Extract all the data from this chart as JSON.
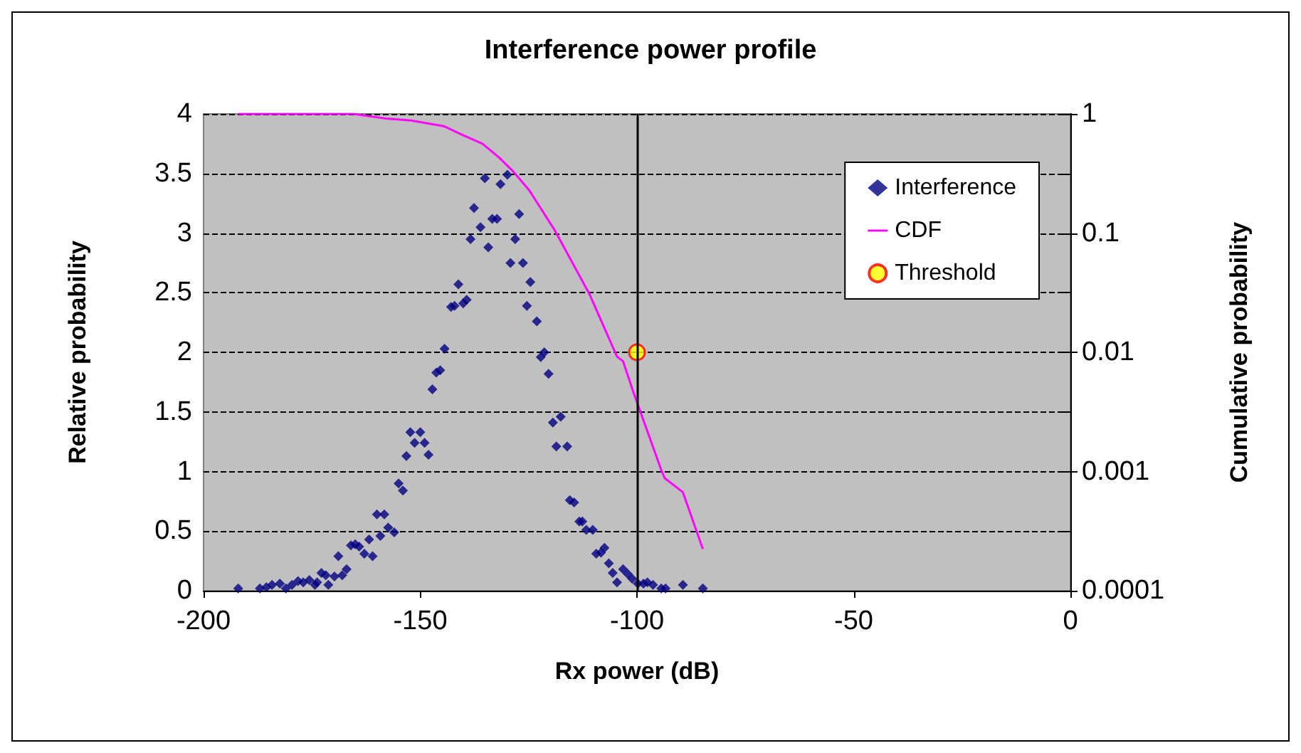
{
  "chart_data": {
    "type": "scatter",
    "title": "Interference power profile",
    "xlabel": "Rx power (dB)",
    "ylabel": "Relative probability",
    "y2label": "Cumulative probability",
    "xlim": [
      -200,
      0
    ],
    "xticks": [
      -200,
      -150,
      -100,
      -50,
      0
    ],
    "ylim": [
      0,
      4
    ],
    "yticks": [
      0,
      0.5,
      1,
      1.5,
      2,
      2.5,
      3,
      3.5,
      4
    ],
    "y2lim": [
      0.0001,
      1
    ],
    "y2ticks": [
      0.0001,
      0.001,
      0.01,
      0.1,
      1
    ],
    "log": "y2",
    "grid": "y",
    "legend": "top right",
    "ref_lines": [
      {
        "axis": "x",
        "value": -100,
        "color": "#000000"
      }
    ],
    "series": [
      {
        "name": "Interference",
        "marker": "diamond",
        "color": "#000080",
        "x": [
          -192,
          -187,
          -185.5,
          -184.2,
          -182.4,
          -181,
          -179.6,
          -178.2,
          -177,
          -175.6,
          -174.3,
          -173.8,
          -172.8,
          -171.8,
          -171.2,
          -169.8,
          -168.9,
          -168,
          -167,
          -166,
          -165,
          -164.1,
          -162.9,
          -161.8,
          -161,
          -160,
          -159.2,
          -158.3,
          -157.4,
          -156,
          -155,
          -154,
          -153.2,
          -152.3,
          -151.3,
          -150,
          -149,
          -148.1,
          -147.2,
          -146.3,
          -145.4,
          -144.4,
          -142.9,
          -142.1,
          -141.2,
          -140.1,
          -139.3,
          -138.4,
          -137.6,
          -136.1,
          -135.1,
          -134.3,
          -133.4,
          -132.3,
          -131.5,
          -129.9,
          -129.2,
          -128.1,
          -127.2,
          -126.3,
          -125.4,
          -124.6,
          -123.1,
          -122.2,
          -121.4,
          -120.4,
          -119.4,
          -118.6,
          -117.6,
          -116.1,
          -115.5,
          -114.5,
          -113.3,
          -112.6,
          -111.7,
          -110.2,
          -109.4,
          -108.3,
          -107.5,
          -106.5,
          -105.6,
          -104.6,
          -103.2,
          -102.1,
          -101.1,
          -99.8,
          -98.5,
          -97.6,
          -96.3,
          -94.4,
          -93.4,
          -89.4,
          -84.8
        ],
        "values": [
          0.02,
          0.02,
          0.03,
          0.05,
          0.06,
          0.02,
          0.05,
          0.08,
          0.07,
          0.09,
          0.05,
          0.07,
          0.15,
          0.13,
          0.05,
          0.12,
          0.29,
          0.13,
          0.18,
          0.38,
          0.39,
          0.37,
          0.31,
          0.43,
          0.29,
          0.64,
          0.46,
          0.64,
          0.53,
          0.49,
          0.9,
          0.84,
          1.13,
          1.33,
          1.24,
          1.33,
          1.24,
          1.14,
          1.69,
          1.83,
          1.85,
          2.03,
          2.38,
          2.39,
          2.57,
          2.41,
          2.44,
          2.95,
          3.21,
          3.05,
          3.46,
          2.88,
          3.12,
          3.12,
          3.41,
          3.49,
          2.75,
          2.95,
          3.16,
          2.75,
          2.39,
          2.59,
          2.26,
          1.96,
          2.0,
          1.82,
          1.41,
          1.21,
          1.46,
          1.21,
          0.76,
          0.74,
          0.58,
          0.58,
          0.51,
          0.51,
          0.31,
          0.32,
          0.36,
          0.23,
          0.15,
          0.07,
          0.18,
          0.14,
          0.1,
          0.06,
          0.06,
          0.07,
          0.05,
          0.02,
          0.02,
          0.05,
          0.02
        ]
      },
      {
        "name": "CDF",
        "type": "line",
        "axis": "y2",
        "marker": "none",
        "color": "#ff00ff",
        "x": [
          -192,
          -165.5,
          -157.5,
          -152.2,
          -144.6,
          -140.4,
          -135.6,
          -131.8,
          -128.6,
          -124.9,
          -119,
          -111,
          -107.8,
          -104.6,
          -103.2,
          -100.8,
          -94.4,
          -93.6,
          -89.4,
          -84.8
        ],
        "values": [
          1,
          1,
          0.91,
          0.88,
          0.79,
          0.67,
          0.56,
          0.43,
          0.33,
          0.23,
          0.106,
          0.031,
          0.0169,
          0.0092,
          0.0084,
          0.0046,
          0.00103,
          0.00088,
          0.00067,
          0.000224
        ]
      },
      {
        "name": "Threshold",
        "axis": "y2",
        "marker": "circle",
        "color": "#ffff00",
        "x": [
          -100
        ],
        "values": [
          0.01
        ]
      }
    ]
  }
}
